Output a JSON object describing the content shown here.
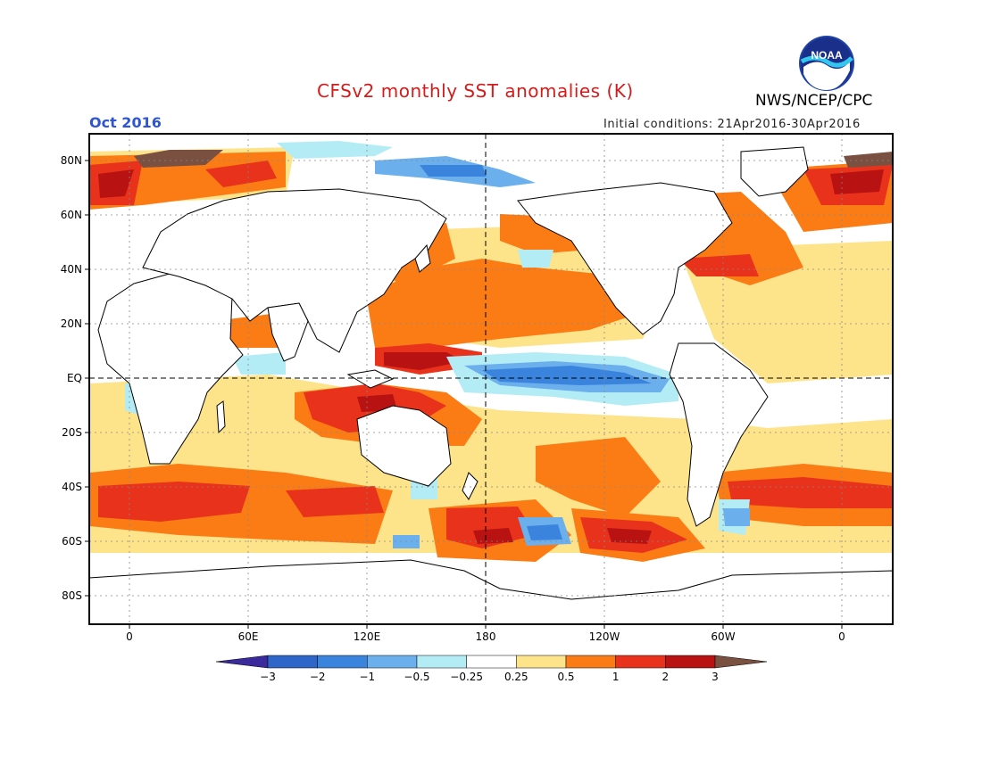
{
  "title": "CFSv2 monthly SST anomalies (K)",
  "agency": "NWS/NCEP/CPC",
  "logo_text": "NOAA",
  "valid_month": "Oct 2016",
  "initial_conditions": "Initial conditions: 21Apr2016-30Apr2016",
  "lat_labels": [
    "80N",
    "60N",
    "40N",
    "20N",
    "EQ",
    "20S",
    "40S",
    "60S",
    "80S"
  ],
  "lon_labels": [
    "0",
    "60E",
    "120E",
    "180",
    "120W",
    "60W",
    "0"
  ],
  "colorbar": {
    "labels": [
      "-3",
      "-2",
      "-1",
      "-0.5",
      "-0.25",
      "0.25",
      "0.5",
      "1",
      "2",
      "3"
    ],
    "colors": [
      "#3b2a9b",
      "#2f66c9",
      "#3a84de",
      "#6bb0ec",
      "#b4ecf6",
      "#ffffff",
      "#fde38a",
      "#fb7b15",
      "#e8321b",
      "#b81212",
      "#7a5040"
    ]
  },
  "colors": {
    "title": "#d41c1c",
    "valid_month": "#2f55d4",
    "land": "#ffffff",
    "coastline": "#000000"
  }
}
